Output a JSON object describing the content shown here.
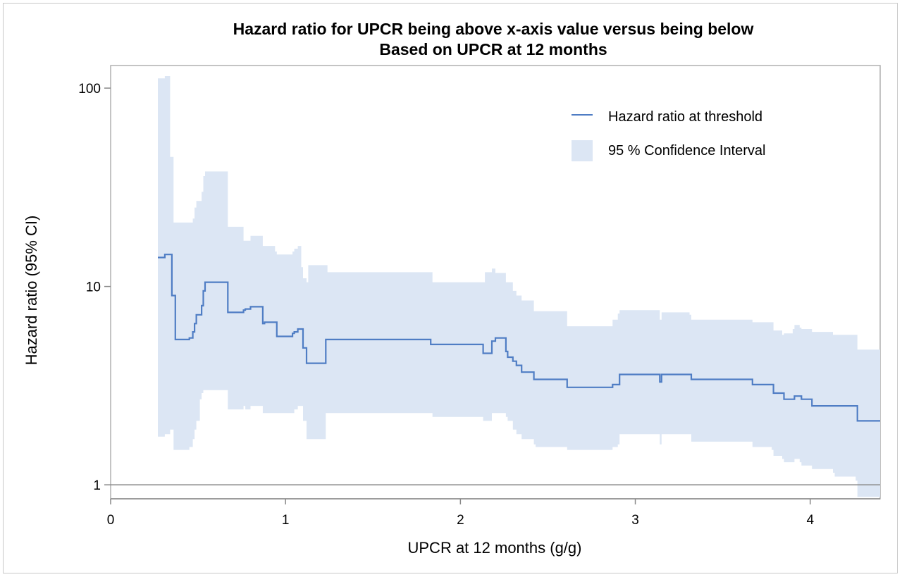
{
  "chart_data": {
    "type": "line",
    "title": "Hazard ratio for UPCR being above x-axis value versus being below",
    "subtitle": "Based on UPCR at 12 months",
    "xlabel": "UPCR at 12 months (g/g)",
    "ylabel": "Hazard ratio (95% CI)",
    "xlim": [
      0,
      4.4
    ],
    "ylim": [
      0.85,
      130
    ],
    "y_scale": "log",
    "x_ticks": [
      0,
      1,
      2,
      3,
      4
    ],
    "x_tick_labels": [
      "0",
      "1",
      "2",
      "3",
      "4"
    ],
    "y_ticks": [
      1,
      10,
      100
    ],
    "y_tick_labels": [
      "1",
      "10",
      "100"
    ],
    "reference_line": 1,
    "legend_position": "top-right",
    "colors": {
      "line": "#4f7dc4",
      "band": "#dce6f4",
      "axis": "#888888",
      "reference": "#8a8a8a"
    },
    "series": [
      {
        "name": "Hazard ratio at threshold",
        "kind": "line",
        "x": [
          0.27,
          0.3,
          0.31,
          0.34,
          0.35,
          0.36,
          0.37,
          0.45,
          0.47,
          0.48,
          0.49,
          0.51,
          0.52,
          0.53,
          0.54,
          0.66,
          0.67,
          0.76,
          0.77,
          0.79,
          0.8,
          0.81,
          0.87,
          0.88,
          0.94,
          0.95,
          1.04,
          1.05,
          1.07,
          1.09,
          1.1,
          1.11,
          1.12,
          1.13,
          1.23,
          1.24,
          1.83,
          1.84,
          2.13,
          2.14,
          2.18,
          2.19,
          2.2,
          2.26,
          2.27,
          2.3,
          2.32,
          2.33,
          2.35,
          2.36,
          2.42,
          2.43,
          2.61,
          2.62,
          2.86,
          2.87,
          2.9,
          2.91,
          3.13,
          3.14,
          3.15,
          3.31,
          3.32,
          3.66,
          3.67,
          3.78,
          3.79,
          3.84,
          3.85,
          3.9,
          3.91,
          3.94,
          3.95,
          4.0,
          4.01,
          4.13,
          4.14,
          4.26,
          4.27,
          4.35,
          4.4
        ],
        "values": [
          14.0,
          14.0,
          14.5,
          14.5,
          9.0,
          9.0,
          5.4,
          5.5,
          5.9,
          6.5,
          7.2,
          7.2,
          8.0,
          9.5,
          10.5,
          10.5,
          7.4,
          7.6,
          7.7,
          7.7,
          7.9,
          7.9,
          6.5,
          6.6,
          6.6,
          5.6,
          5.8,
          5.9,
          6.1,
          6.1,
          4.9,
          4.9,
          4.1,
          4.1,
          5.4,
          5.4,
          5.1,
          5.1,
          4.6,
          4.6,
          5.3,
          5.3,
          5.5,
          4.7,
          4.4,
          4.2,
          4.0,
          4.0,
          3.7,
          3.7,
          3.4,
          3.4,
          3.1,
          3.1,
          3.1,
          3.2,
          3.2,
          3.6,
          3.6,
          3.3,
          3.6,
          3.6,
          3.4,
          3.4,
          3.2,
          3.2,
          2.9,
          2.9,
          2.7,
          2.7,
          2.8,
          2.8,
          2.7,
          2.7,
          2.5,
          2.5,
          2.5,
          2.5,
          2.1,
          2.1,
          2.1
        ]
      },
      {
        "name": "95 % Confidence Interval",
        "kind": "band",
        "x": [
          0.27,
          0.3,
          0.31,
          0.34,
          0.35,
          0.36,
          0.37,
          0.45,
          0.47,
          0.48,
          0.49,
          0.51,
          0.52,
          0.53,
          0.54,
          0.66,
          0.67,
          0.76,
          0.77,
          0.79,
          0.8,
          0.81,
          0.87,
          0.88,
          0.94,
          0.95,
          1.04,
          1.05,
          1.07,
          1.09,
          1.1,
          1.11,
          1.12,
          1.13,
          1.23,
          1.24,
          1.83,
          1.84,
          2.13,
          2.14,
          2.18,
          2.19,
          2.2,
          2.26,
          2.27,
          2.3,
          2.32,
          2.33,
          2.35,
          2.36,
          2.42,
          2.43,
          2.61,
          2.62,
          2.86,
          2.87,
          2.9,
          2.91,
          3.13,
          3.14,
          3.15,
          3.31,
          3.32,
          3.66,
          3.67,
          3.78,
          3.79,
          3.84,
          3.85,
          3.9,
          3.91,
          3.94,
          3.95,
          4.0,
          4.01,
          4.13,
          4.14,
          4.26,
          4.27,
          4.35,
          4.4
        ],
        "lower": [
          1.75,
          1.75,
          1.8,
          1.9,
          1.9,
          1.5,
          1.5,
          1.55,
          1.7,
          1.9,
          2.1,
          2.7,
          2.9,
          3.0,
          3.0,
          3.0,
          2.4,
          2.5,
          2.4,
          2.4,
          2.5,
          2.5,
          2.3,
          2.3,
          2.3,
          2.3,
          2.3,
          2.4,
          2.5,
          2.5,
          2.1,
          2.1,
          1.7,
          1.7,
          2.3,
          2.3,
          2.3,
          2.2,
          2.1,
          2.1,
          2.3,
          2.3,
          2.3,
          2.2,
          2.1,
          1.9,
          1.8,
          1.8,
          1.7,
          1.7,
          1.6,
          1.55,
          1.5,
          1.5,
          1.5,
          1.55,
          1.6,
          1.8,
          1.8,
          1.6,
          1.8,
          1.8,
          1.65,
          1.65,
          1.55,
          1.5,
          1.4,
          1.35,
          1.3,
          1.3,
          1.35,
          1.3,
          1.25,
          1.25,
          1.2,
          1.15,
          1.1,
          1.05,
          0.87,
          0.87,
          0.87
        ],
        "upper": [
          112,
          112,
          115,
          45,
          45,
          21,
          21,
          21,
          22,
          25,
          27,
          27,
          30,
          36,
          38,
          38,
          20,
          17,
          17,
          17,
          18,
          18,
          16,
          16,
          15,
          14.5,
          15,
          15.5,
          16,
          12.5,
          11,
          11,
          10.5,
          12.8,
          12.8,
          11.8,
          11.8,
          10.5,
          10.5,
          11.8,
          12.3,
          12.3,
          11.7,
          10.5,
          10.5,
          9.5,
          9.0,
          9.0,
          8.5,
          8.5,
          7.5,
          7.5,
          6.3,
          6.3,
          6.3,
          6.8,
          7.3,
          7.6,
          7.6,
          6.8,
          7.4,
          7.2,
          6.8,
          6.8,
          6.6,
          6.6,
          6.0,
          5.7,
          5.8,
          6.1,
          6.4,
          6.2,
          6.1,
          6.1,
          5.9,
          5.7,
          5.7,
          5.7,
          4.8,
          4.8,
          4.9
        ]
      }
    ]
  }
}
